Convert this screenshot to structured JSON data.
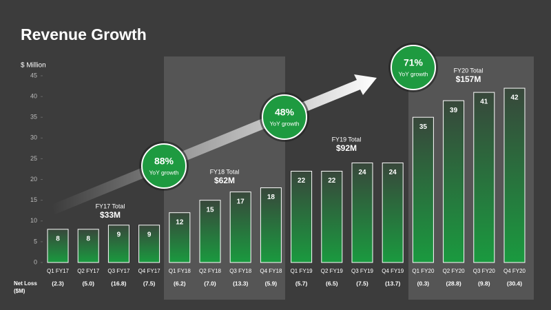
{
  "chart_data": {
    "type": "bar",
    "title": "Revenue Growth",
    "y_label": "$ Million",
    "categories": [
      "Q1 FY17",
      "Q2 FY17",
      "Q3 FY17",
      "Q4 FY17",
      "Q1 FY18",
      "Q2 FY18",
      "Q3 FY18",
      "Q4 FY18",
      "Q1 FY19",
      "Q2 FY19",
      "Q3 FY19",
      "Q4 FY19",
      "Q1 FY20",
      "Q2 FY20",
      "Q3 FY20",
      "Q4 FY20"
    ],
    "values": [
      8,
      8,
      9,
      9,
      12,
      15,
      17,
      18,
      22,
      22,
      24,
      24,
      35,
      39,
      41,
      42
    ],
    "color": "#1a9a3f",
    "ylim": [
      0,
      45
    ],
    "yticks": [
      0,
      5,
      10,
      15,
      20,
      25,
      30,
      35,
      40,
      45
    ],
    "net_loss": {
      "label": [
        "Net Loss",
        "($M)"
      ],
      "values": [
        -2.3,
        -5.0,
        -16.8,
        -7.5,
        -6.2,
        -7.0,
        -13.3,
        -5.9,
        -5.7,
        -6.5,
        -7.5,
        -13.7,
        -0.3,
        -28.8,
        -9.8,
        -30.4
      ],
      "value_labels": [
        "(2.3)",
        "(5.0)",
        "(16.8)",
        "(7.5)",
        "(6.2)",
        "(7.0)",
        "(13.3)",
        "(5.9)",
        "(5.7)",
        "(6.5)",
        "(7.5)",
        "(13.7)",
        "(0.3)",
        "(28.8)",
        "(9.8)",
        "(30.4)"
      ]
    },
    "group_totals": [
      {
        "label": "FY17 Total",
        "total": "$33M"
      },
      {
        "label": "FY18 Total",
        "total": "$62M"
      },
      {
        "label": "FY19 Total",
        "total": "$92M"
      },
      {
        "label": "FY20 Total",
        "total": "$157M"
      }
    ],
    "growth": [
      {
        "value": "88%",
        "label": "YoY growth"
      },
      {
        "value": "48%",
        "label": "YoY growth"
      },
      {
        "value": "71%",
        "label": "YoY growth"
      }
    ]
  }
}
